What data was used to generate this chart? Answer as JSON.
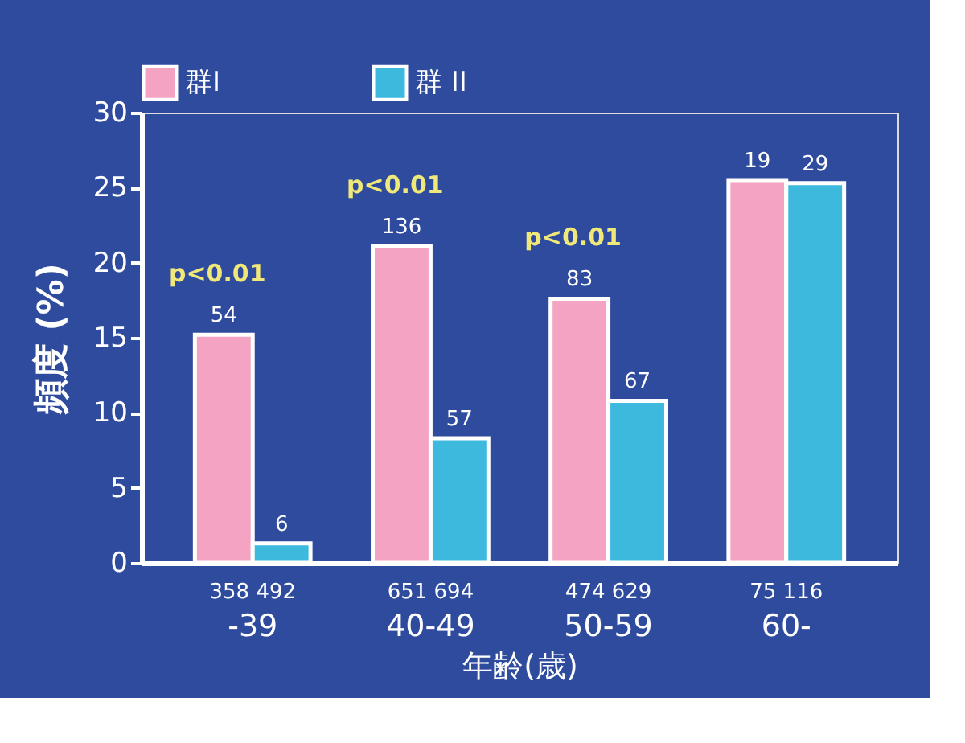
{
  "chart_data": {
    "type": "bar",
    "xlabel": "年齢(歳)",
    "ylabel": "頻度 (%)",
    "categories": [
      "-39",
      "40-49",
      "50-59",
      "60-"
    ],
    "series": [
      {
        "name": "群I",
        "color": "#f4a3c2",
        "values": [
          15.2,
          21.1,
          17.6,
          25.5
        ]
      },
      {
        "name": "群 II",
        "color": "#3cb9dd",
        "values": [
          1.3,
          8.3,
          10.8,
          25.3
        ]
      }
    ],
    "ylim": [
      0,
      30
    ],
    "yticks": [
      0,
      5,
      10,
      15,
      20,
      25,
      30
    ],
    "grid": false,
    "legend": "top",
    "annotations": [
      "p<0.01",
      "p<0.01",
      "p<0.01",
      "358  492",
      "651  694",
      "474  629",
      "75  116",
      "54",
      "136",
      "83",
      "19",
      "6",
      "57",
      "67",
      "29"
    ]
  }
}
